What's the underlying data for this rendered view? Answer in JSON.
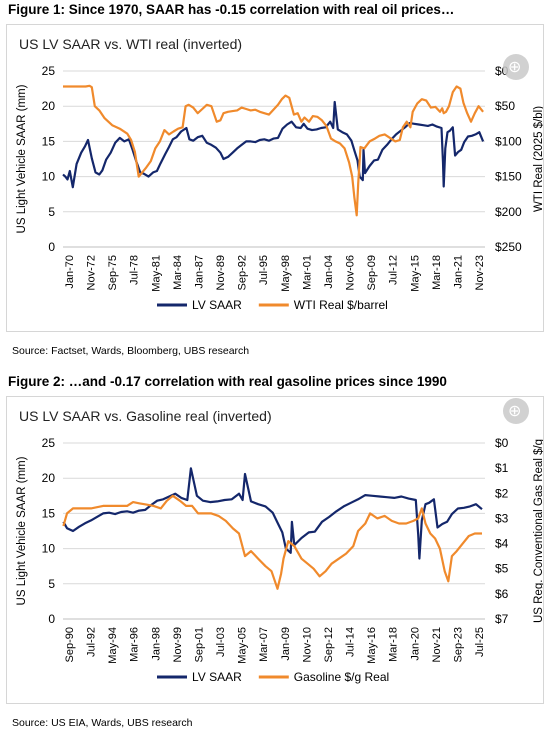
{
  "figures": [
    {
      "caption": "Figure 1: Since 1970, SAAR has -0.15 correlation with real oil prices…",
      "heading": "US LV SAAR vs. WTI real (inverted)",
      "source": "Source: Factset, Wards, Bloomberg, UBS research"
    },
    {
      "caption": "Figure 2: …and -0.17 correlation with real gasoline prices since 1990",
      "heading": "US LV SAAR vs. Gasoline real (inverted)",
      "source": "Source: US EIA, Wards, UBS research"
    }
  ],
  "chart_data": [
    {
      "type": "line",
      "title": "US LV SAAR vs. WTI real (inverted)",
      "xlabel": "",
      "ylabel": "US Light Vehicle SAAR (mm)",
      "y2label": "WTI Real (2025 $/bl)",
      "ylim": [
        0,
        25
      ],
      "y2lim": [
        250,
        0
      ],
      "y2_inverted": true,
      "xlim": [
        1970.0,
        2025.75
      ],
      "yticks": [
        "0",
        "5",
        "10",
        "15",
        "20",
        "25"
      ],
      "y2ticks": [
        "$0",
        "$50",
        "$100",
        "$150",
        "$200",
        "$250"
      ],
      "xticks": [
        "Jan-70",
        "Nov-72",
        "Sep-75",
        "Jul-78",
        "May-81",
        "Mar-84",
        "Jan-87",
        "Nov-89",
        "Sep-92",
        "Jul-95",
        "May-98",
        "Mar-01",
        "Jan-04",
        "Nov-06",
        "Sep-09",
        "Jul-12",
        "May-15",
        "Mar-18",
        "Jan-21",
        "Nov-23"
      ],
      "grid": true,
      "legend_position": "bottom",
      "series": [
        {
          "name": "LV SAAR",
          "axis": "left",
          "color": "#14276b",
          "x": [
            1970.0,
            1970.3,
            1970.6,
            1970.9,
            1971.3,
            1971.8,
            1972.4,
            1972.9,
            1973.3,
            1973.8,
            1974.3,
            1974.8,
            1975.2,
            1975.7,
            1976.3,
            1976.9,
            1977.5,
            1978.1,
            1978.7,
            1979.2,
            1979.7,
            1980.2,
            1980.7,
            1981.3,
            1981.9,
            1982.4,
            1982.9,
            1983.5,
            1984.0,
            1984.5,
            1985.0,
            1985.6,
            1986.3,
            1986.7,
            1987.2,
            1987.8,
            1988.4,
            1989.0,
            1989.6,
            1990.2,
            1990.8,
            1991.2,
            1991.8,
            1992.4,
            1993.0,
            1993.6,
            1994.2,
            1994.8,
            1995.4,
            1996.0,
            1996.6,
            1997.2,
            1997.8,
            1998.4,
            1999.0,
            1999.6,
            2000.2,
            2000.8,
            2001.4,
            2001.8,
            2002.3,
            2002.9,
            2003.5,
            2004.1,
            2004.7,
            2005.3,
            2005.7,
            2005.9,
            2006.3,
            2006.9,
            2007.5,
            2008.1,
            2008.5,
            2008.9,
            2009.2,
            2009.6,
            2009.7,
            2009.9,
            2010.5,
            2011.1,
            2011.6,
            2012.2,
            2012.8,
            2013.4,
            2014.0,
            2014.6,
            2015.2,
            2015.8,
            2016.4,
            2017.0,
            2017.6,
            2018.2,
            2018.8,
            2019.4,
            2020.0,
            2020.2,
            2020.3,
            2020.5,
            2020.8,
            2021.1,
            2021.5,
            2021.8,
            2022.2,
            2022.6,
            2023.0,
            2023.5,
            2024.0,
            2024.5,
            2025.0,
            2025.5
          ],
          "y": [
            10.3,
            10.0,
            9.6,
            10.8,
            8.5,
            11.8,
            13.4,
            14.3,
            15.2,
            12.6,
            10.6,
            10.3,
            10.9,
            12.4,
            13.4,
            14.8,
            15.5,
            15.0,
            15.3,
            13.8,
            12.1,
            10.6,
            10.4,
            10.0,
            10.6,
            10.8,
            11.9,
            13.2,
            14.2,
            15.3,
            15.6,
            16.4,
            16.9,
            15.3,
            15.1,
            15.6,
            15.8,
            14.8,
            14.5,
            14.1,
            13.4,
            12.5,
            12.8,
            13.4,
            14.0,
            14.5,
            15.0,
            15.0,
            14.9,
            15.2,
            15.3,
            15.1,
            15.4,
            15.5,
            16.8,
            17.4,
            17.8,
            17.0,
            16.9,
            17.5,
            16.8,
            16.6,
            16.7,
            16.9,
            17.0,
            17.8,
            16.9,
            20.6,
            16.7,
            16.3,
            16.0,
            15.1,
            13.7,
            12.3,
            10.0,
            9.5,
            13.8,
            10.5,
            11.5,
            12.3,
            12.4,
            13.8,
            14.5,
            15.3,
            16.0,
            16.5,
            17.0,
            17.6,
            17.5,
            17.4,
            17.3,
            17.2,
            17.4,
            17.1,
            16.9,
            12.0,
            8.6,
            14.0,
            16.3,
            16.5,
            17.0,
            13.0,
            13.5,
            13.8,
            14.9,
            15.7,
            15.8,
            16.0,
            16.3,
            15.0
          ]
        },
        {
          "name": "WTI Real $/barrel",
          "axis": "right",
          "color": "#f08a2c",
          "x": [
            1970.0,
            1971.0,
            1972.0,
            1973.0,
            1973.5,
            1973.8,
            1974.2,
            1974.8,
            1975.5,
            1976.5,
            1977.5,
            1978.5,
            1979.0,
            1979.5,
            1980.0,
            1980.4,
            1981.0,
            1981.6,
            1982.2,
            1982.8,
            1983.4,
            1984.0,
            1984.6,
            1985.2,
            1985.8,
            1986.2,
            1986.6,
            1987.2,
            1987.8,
            1988.4,
            1989.0,
            1989.6,
            1990.3,
            1990.8,
            1991.2,
            1991.8,
            1992.4,
            1993.0,
            1993.6,
            1994.2,
            1994.8,
            1995.4,
            1996.0,
            1996.6,
            1997.2,
            1997.8,
            1998.4,
            1998.9,
            1999.4,
            1999.9,
            2000.5,
            2001.0,
            2001.5,
            2001.9,
            2002.5,
            2003.0,
            2003.6,
            2004.2,
            2004.8,
            2005.4,
            2006.0,
            2006.6,
            2007.2,
            2007.8,
            2008.2,
            2008.5,
            2008.8,
            2009.0,
            2009.3,
            2009.8,
            2010.5,
            2011.2,
            2011.8,
            2012.5,
            2013.2,
            2013.9,
            2014.5,
            2014.9,
            2015.4,
            2015.9,
            2016.2,
            2016.8,
            2017.4,
            2018.0,
            2018.6,
            2019.2,
            2019.8,
            2020.1,
            2020.3,
            2020.6,
            2021.0,
            2021.5,
            2022.0,
            2022.5,
            2022.9,
            2023.4,
            2023.9,
            2024.4,
            2024.9,
            2025.5
          ],
          "y": [
            22,
            22,
            22,
            22,
            21,
            23,
            50,
            56,
            67,
            77,
            82,
            89,
            98,
            115,
            150,
            145,
            137,
            128,
            110,
            100,
            84,
            90,
            86,
            82,
            80,
            50,
            48,
            52,
            60,
            54,
            48,
            50,
            72,
            70,
            60,
            58,
            57,
            56,
            52,
            54,
            56,
            55,
            58,
            60,
            62,
            55,
            48,
            40,
            35,
            38,
            62,
            60,
            72,
            66,
            72,
            64,
            65,
            70,
            78,
            96,
            100,
            103,
            110,
            130,
            150,
            180,
            205,
            160,
            108,
            110,
            100,
            96,
            92,
            90,
            95,
            100,
            98,
            80,
            72,
            80,
            58,
            46,
            40,
            42,
            52,
            51,
            58,
            53,
            60,
            58,
            50,
            30,
            22,
            25,
            45,
            60,
            72,
            60,
            50,
            58
          ]
        }
      ]
    },
    {
      "type": "line",
      "title": "US LV SAAR vs. Gasoline real (inverted)",
      "xlabel": "",
      "ylabel": "US Light Vehicle SAAR (mm)",
      "y2label": "US Reg. Conventional Gas Real $/g",
      "ylim": [
        0,
        25
      ],
      "y2lim": [
        7,
        0
      ],
      "y2_inverted": true,
      "xlim": [
        1990.67,
        2025.75
      ],
      "yticks": [
        "0",
        "5",
        "10",
        "15",
        "20",
        "25"
      ],
      "y2ticks": [
        "$0",
        "$1",
        "$2",
        "$3",
        "$4",
        "$5",
        "$6",
        "$7"
      ],
      "xticks": [
        "Sep-90",
        "Jul-92",
        "May-94",
        "Mar-96",
        "Jan-98",
        "Nov-99",
        "Sep-01",
        "Jul-03",
        "May-05",
        "Mar-07",
        "Jan-09",
        "Nov-10",
        "Sep-12",
        "Jul-14",
        "May-16",
        "Mar-18",
        "Jan-20",
        "Nov-21",
        "Sep-23",
        "Jul-25"
      ],
      "grid": true,
      "legend_position": "bottom",
      "series": [
        {
          "name": "LV SAAR",
          "axis": "left",
          "color": "#14276b",
          "x": [
            1990.7,
            1991.0,
            1991.5,
            1992.0,
            1992.5,
            1993.0,
            1993.5,
            1994.0,
            1994.5,
            1995.0,
            1995.5,
            1996.0,
            1996.5,
            1997.0,
            1997.5,
            1998.0,
            1998.5,
            1999.0,
            1999.5,
            2000.0,
            2000.5,
            2001.0,
            2001.3,
            2001.8,
            2002.3,
            2002.9,
            2003.5,
            2004.1,
            2004.7,
            2005.3,
            2005.6,
            2005.8,
            2006.3,
            2006.9,
            2007.5,
            2008.1,
            2008.5,
            2008.9,
            2009.2,
            2009.6,
            2009.7,
            2009.9,
            2010.5,
            2011.1,
            2011.6,
            2012.2,
            2012.8,
            2013.4,
            2014.0,
            2014.6,
            2015.2,
            2015.8,
            2016.4,
            2017.0,
            2017.6,
            2018.2,
            2018.8,
            2019.4,
            2020.0,
            2020.2,
            2020.3,
            2020.5,
            2020.8,
            2021.1,
            2021.5,
            2021.8,
            2022.2,
            2022.6,
            2023.0,
            2023.5,
            2024.0,
            2024.5,
            2025.0,
            2025.5
          ],
          "y": [
            13.8,
            12.9,
            12.5,
            13.1,
            13.6,
            14.0,
            14.5,
            15.0,
            15.1,
            14.9,
            15.2,
            15.3,
            15.1,
            15.4,
            15.5,
            16.2,
            16.8,
            17.0,
            17.4,
            17.8,
            17.2,
            16.9,
            21.4,
            17.5,
            16.8,
            16.6,
            16.7,
            16.9,
            17.0,
            17.8,
            16.9,
            20.6,
            16.7,
            16.3,
            16.0,
            15.1,
            13.7,
            12.3,
            10.0,
            9.4,
            13.8,
            10.5,
            11.5,
            12.3,
            12.4,
            13.8,
            14.5,
            15.3,
            16.0,
            16.5,
            17.0,
            17.6,
            17.5,
            17.4,
            17.3,
            17.2,
            17.4,
            17.1,
            16.9,
            12.0,
            8.6,
            14.0,
            16.3,
            16.5,
            17.0,
            13.0,
            13.5,
            13.8,
            14.9,
            15.7,
            15.8,
            16.0,
            16.3,
            15.6
          ]
        },
        {
          "name": "Gasoline $/g Real",
          "axis": "right",
          "color": "#f08a2c",
          "x": [
            1990.7,
            1991.0,
            1991.5,
            1992.0,
            1993.0,
            1994.0,
            1995.0,
            1996.0,
            1996.5,
            1997.0,
            1997.6,
            1998.2,
            1998.8,
            1999.3,
            1999.8,
            2000.4,
            2000.9,
            2001.4,
            2001.9,
            2002.4,
            2003.0,
            2003.6,
            2004.2,
            2004.8,
            2005.3,
            2005.8,
            2006.3,
            2006.9,
            2007.5,
            2008.0,
            2008.5,
            2008.8,
            2009.0,
            2009.4,
            2009.9,
            2010.5,
            2011.0,
            2011.5,
            2012.0,
            2012.5,
            2013.0,
            2013.6,
            2014.2,
            2014.8,
            2015.2,
            2015.8,
            2016.2,
            2016.8,
            2017.4,
            2018.0,
            2018.6,
            2019.2,
            2019.8,
            2020.2,
            2020.5,
            2020.8,
            2021.2,
            2021.6,
            2022.0,
            2022.4,
            2022.7,
            2023.0,
            2023.4,
            2023.9,
            2024.4,
            2024.9,
            2025.5
          ],
          "y": [
            3.3,
            2.8,
            2.6,
            2.6,
            2.6,
            2.5,
            2.5,
            2.5,
            2.35,
            2.4,
            2.45,
            2.5,
            2.6,
            2.3,
            2.1,
            2.3,
            2.5,
            2.5,
            2.8,
            2.8,
            2.8,
            2.9,
            3.1,
            3.4,
            3.6,
            4.5,
            4.3,
            4.6,
            4.9,
            5.1,
            5.8,
            5.2,
            4.6,
            3.9,
            4.1,
            4.6,
            4.8,
            5.0,
            5.3,
            5.1,
            4.8,
            4.6,
            4.4,
            4.1,
            3.5,
            3.2,
            2.8,
            3.0,
            2.9,
            3.1,
            3.2,
            3.2,
            3.1,
            3.0,
            2.6,
            3.2,
            3.6,
            3.8,
            4.2,
            5.1,
            5.5,
            4.5,
            4.3,
            4.0,
            3.7,
            3.6,
            3.6
          ]
        }
      ]
    }
  ]
}
